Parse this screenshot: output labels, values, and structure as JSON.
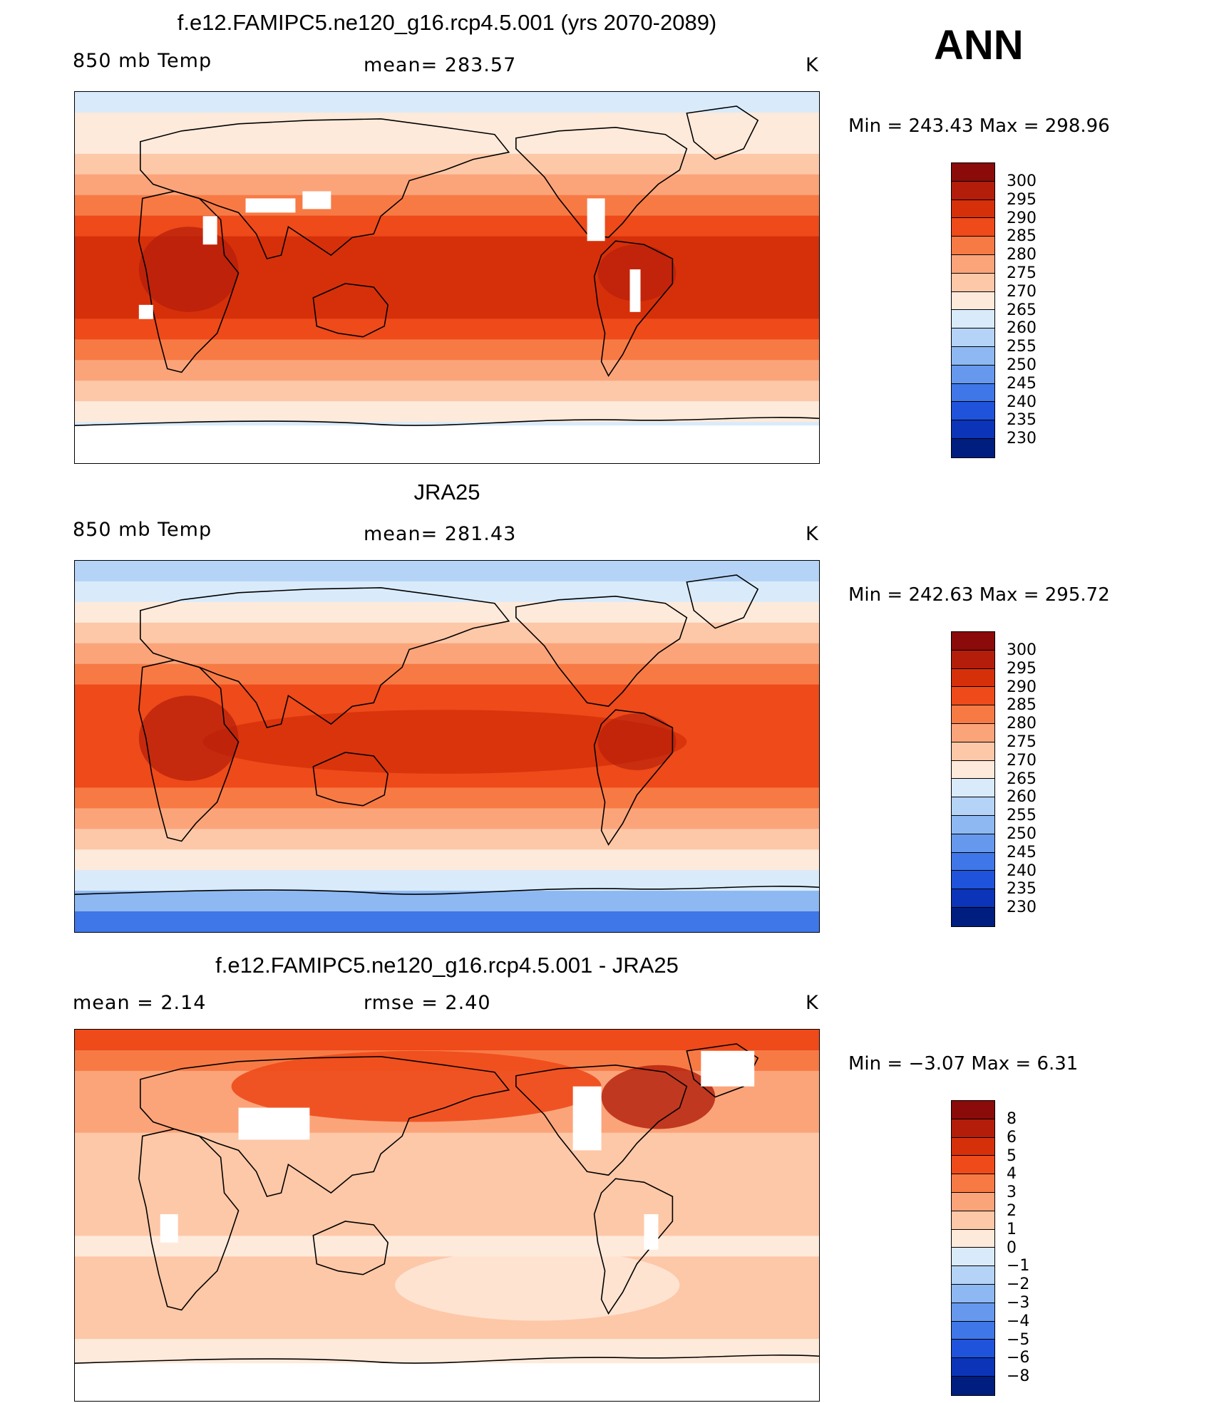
{
  "season": "ANN",
  "panels": [
    {
      "title": "f.e12.FAMIPC5.ne120_g16.rcp4.5.001 (yrs 2070-2089)",
      "left_label": "850 mb Temp",
      "center_label": "mean=  283.57",
      "units": "K",
      "minmax": "Min  =  243.43  Max  =  298.96",
      "colorbar_labels": [
        "300",
        "295",
        "290",
        "285",
        "280",
        "275",
        "270",
        "265",
        "260",
        "255",
        "250",
        "245",
        "240",
        "235",
        "230"
      ],
      "field": "model"
    },
    {
      "title": "JRA25",
      "left_label": "850 mb Temp",
      "center_label": "mean=  281.43",
      "units": "K",
      "minmax": "Min  =  242.63  Max  =  295.72",
      "colorbar_labels": [
        "300",
        "295",
        "290",
        "285",
        "280",
        "275",
        "270",
        "265",
        "260",
        "255",
        "250",
        "245",
        "240",
        "235",
        "230"
      ],
      "field": "obs"
    },
    {
      "title": "f.e12.FAMIPC5.ne120_g16.rcp4.5.001 - JRA25",
      "left_label": "mean =     2.14",
      "center_label": "rmse =     2.40",
      "units": "K",
      "minmax": "Min  =    −3.07  Max  =      6.31",
      "colorbar_labels": [
        "8",
        "6",
        "5",
        "4",
        "3",
        "2",
        "1",
        "0",
        "−1",
        "−2",
        "−3",
        "−4",
        "−5",
        "−6",
        "−8"
      ],
      "field": "diff"
    }
  ],
  "colors": {
    "abs_scale": [
      "#8b0a0a",
      "#b31d0a",
      "#d6300a",
      "#ee4a1a",
      "#f77a45",
      "#fba47a",
      "#fdc8a8",
      "#feeadb",
      "#d9ebfb",
      "#b4d3f6",
      "#8eb8f2",
      "#6699ee",
      "#3f77e8",
      "#1f53dc",
      "#0b34b8",
      "#001e80"
    ],
    "diff_scale": [
      "#8b0a0a",
      "#b31d0a",
      "#d6300a",
      "#ee4a1a",
      "#f77a45",
      "#fba47a",
      "#fdc8a8",
      "#feeadb",
      "#d9ebfb",
      "#b4d3f6",
      "#8eb8f2",
      "#6699ee",
      "#3f77e8",
      "#1f53dc",
      "#0b34b8",
      "#001e80"
    ]
  }
}
